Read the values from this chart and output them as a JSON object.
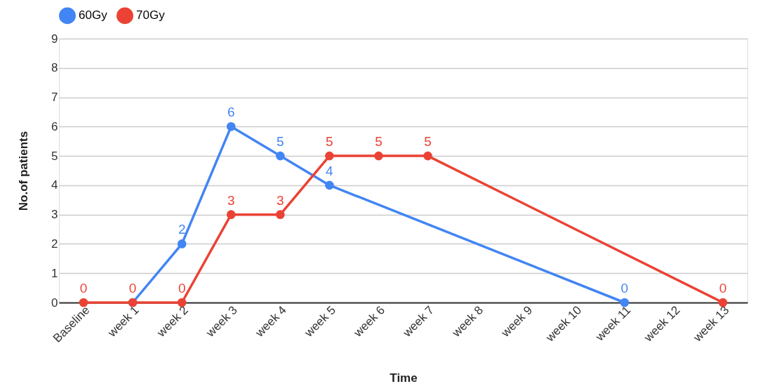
{
  "chart_data": {
    "type": "line",
    "xlabel": "Time",
    "ylabel": "No.of patients",
    "categories": [
      "Baseline",
      "week 1",
      "week 2",
      "week 3",
      "week 4",
      "week 5",
      "week 6",
      "week 7",
      "week 8",
      "week 9",
      "week 10",
      "week 11",
      "week 12",
      "week 13"
    ],
    "series": [
      {
        "name": "60Gy",
        "color": "#4285f4",
        "values": [
          null,
          0,
          2,
          6,
          5,
          4,
          null,
          null,
          null,
          null,
          null,
          0,
          null,
          null
        ],
        "value_labels": [
          null,
          null,
          "2",
          "6",
          "5",
          "4",
          null,
          null,
          null,
          null,
          null,
          "0",
          null,
          null
        ]
      },
      {
        "name": "70Gy",
        "color": "#ea4335",
        "values": [
          0,
          0,
          0,
          3,
          3,
          5,
          5,
          5,
          null,
          null,
          null,
          null,
          null,
          0
        ],
        "value_labels": [
          "0",
          "0",
          "0",
          "3",
          "3",
          "5",
          "5",
          "5",
          null,
          null,
          null,
          null,
          null,
          "0"
        ]
      }
    ],
    "ylim": [
      0,
      9
    ],
    "yticks": [
      0,
      1,
      2,
      3,
      4,
      5,
      6,
      7,
      8,
      9
    ],
    "grid": "y",
    "legend": "top",
    "marker": "circle",
    "line_style": "solid"
  }
}
